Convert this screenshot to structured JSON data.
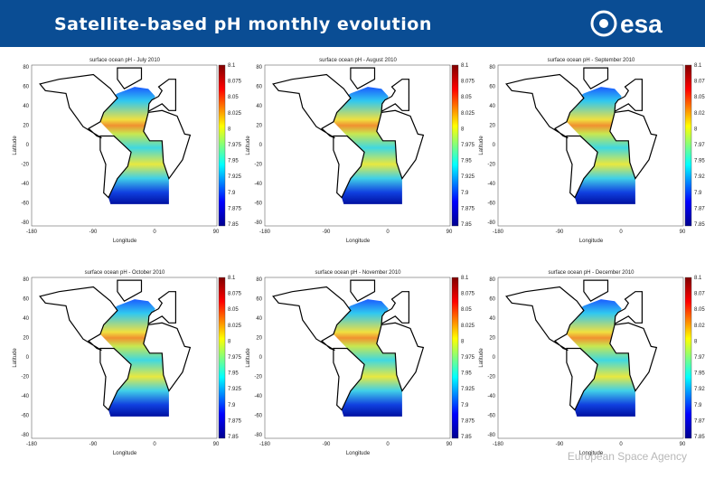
{
  "header": {
    "title": "Satellite-based pH monthly evolution",
    "logo": "esa"
  },
  "panels": [
    {
      "title": "surface ocean pH - July 2010"
    },
    {
      "title": "surface ocean pH - August 2010"
    },
    {
      "title": "surface ocean pH - September 2010"
    },
    {
      "title": "surface ocean pH - October 2010"
    },
    {
      "title": "surface ocean pH - November 2010"
    },
    {
      "title": "surface ocean pH - December 2010"
    }
  ],
  "axes": {
    "y_label": "Latitude",
    "x_label": "Longitude",
    "y_ticks": [
      "80",
      "60",
      "40",
      "20",
      "0",
      "-20",
      "-40",
      "-60",
      "-80"
    ],
    "x_ticks": [
      "-180",
      "-90",
      "0",
      "90"
    ],
    "colorbar_ticks": [
      "8.1",
      "8.075",
      "8.05",
      "8.025",
      "8",
      "7.975",
      "7.95",
      "7.925",
      "7.9",
      "7.875",
      "7.85"
    ]
  },
  "footer": {
    "text": "European Space Agency"
  }
}
